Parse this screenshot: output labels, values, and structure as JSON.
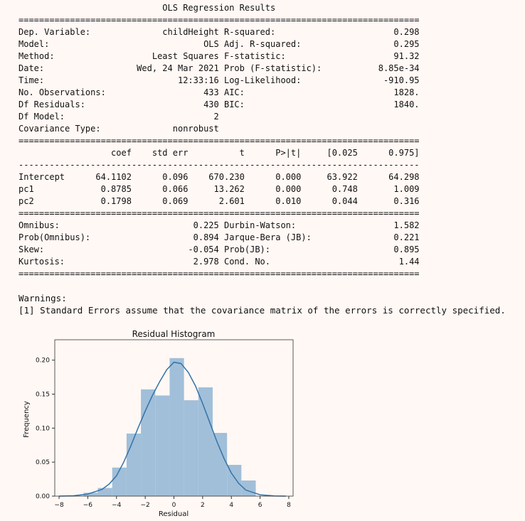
{
  "summary": {
    "title": "OLS Regression Results",
    "rule_double": "==============================================================================",
    "rule_single": "------------------------------------------------------------------------------",
    "model_info_left": [
      {
        "label": "Dep. Variable:",
        "value": "childHeight"
      },
      {
        "label": "Model:",
        "value": "OLS"
      },
      {
        "label": "Method:",
        "value": "Least Squares"
      },
      {
        "label": "Date:",
        "value": "Wed, 24 Mar 2021"
      },
      {
        "label": "Time:",
        "value": "12:33:16"
      },
      {
        "label": "No. Observations:",
        "value": "433"
      },
      {
        "label": "Df Residuals:",
        "value": "430"
      },
      {
        "label": "Df Model:",
        "value": "2"
      },
      {
        "label": "Covariance Type:",
        "value": "nonrobust"
      }
    ],
    "model_info_right": [
      {
        "label": "R-squared:",
        "value": "0.298"
      },
      {
        "label": "Adj. R-squared:",
        "value": "0.295"
      },
      {
        "label": "F-statistic:",
        "value": "91.32"
      },
      {
        "label": "Prob (F-statistic):",
        "value": "8.85e-34"
      },
      {
        "label": "Log-Likelihood:",
        "value": "-910.95"
      },
      {
        "label": "AIC:",
        "value": "1828."
      },
      {
        "label": "BIC:",
        "value": "1840."
      }
    ],
    "coef_headers": [
      "coef",
      "std err",
      "t",
      "P>|t|",
      "[0.025",
      "0.975]"
    ],
    "coef_rows": [
      {
        "name": "Intercept",
        "values": [
          "64.1102",
          "0.096",
          "670.230",
          "0.000",
          "63.922",
          "64.298"
        ]
      },
      {
        "name": "pc1",
        "values": [
          "0.8785",
          "0.066",
          "13.262",
          "0.000",
          "0.748",
          "1.009"
        ]
      },
      {
        "name": "pc2",
        "values": [
          "0.1798",
          "0.069",
          "2.601",
          "0.010",
          "0.044",
          "0.316"
        ]
      }
    ],
    "diag_left": [
      {
        "label": "Omnibus:",
        "value": "0.225"
      },
      {
        "label": "Prob(Omnibus):",
        "value": "0.894"
      },
      {
        "label": "Skew:",
        "value": "-0.054"
      },
      {
        "label": "Kurtosis:",
        "value": "2.978"
      }
    ],
    "diag_right": [
      {
        "label": "Durbin-Watson:",
        "value": "1.582"
      },
      {
        "label": "Jarque-Bera (JB):",
        "value": "0.221"
      },
      {
        "label": "Prob(JB):",
        "value": "0.895"
      },
      {
        "label": "Cond. No.",
        "value": "1.44"
      }
    ]
  },
  "warnings": {
    "heading": "Warnings:",
    "items": [
      "[1] Standard Errors assume that the covariance matrix of the errors is correctly specified."
    ]
  },
  "chart_data": {
    "type": "bar",
    "title": "Residual Histogram",
    "xlabel": "Residual",
    "ylabel": "Frequency",
    "xlim": [
      -8.3,
      8.3
    ],
    "ylim": [
      0,
      0.23
    ],
    "xticks": [
      -8,
      -6,
      -4,
      -2,
      0,
      2,
      4,
      6,
      8
    ],
    "yticks": [
      0.0,
      0.05,
      0.1,
      0.15,
      0.2
    ],
    "ytick_labels": [
      "0.00",
      "0.05",
      "0.10",
      "0.15",
      "0.20"
    ],
    "bin_edges": [
      -6.3,
      -5.3,
      -4.3,
      -3.3,
      -2.3,
      -1.3,
      -0.3,
      0.7,
      1.7,
      2.7,
      3.7,
      4.7,
      5.7
    ],
    "values": [
      0.005,
      0.012,
      0.042,
      0.092,
      0.157,
      0.148,
      0.203,
      0.141,
      0.16,
      0.093,
      0.046,
      0.023,
      0.009
    ],
    "kde_x": [
      -8.0,
      -7.0,
      -6.0,
      -5.0,
      -4.5,
      -4.0,
      -3.5,
      -3.0,
      -2.5,
      -2.0,
      -1.5,
      -1.0,
      -0.5,
      0.0,
      0.5,
      1.0,
      1.5,
      2.0,
      2.5,
      3.0,
      3.5,
      4.0,
      4.5,
      5.0,
      6.0,
      7.0,
      7.8
    ],
    "kde_y": [
      0.0,
      0.0005,
      0.003,
      0.01,
      0.018,
      0.03,
      0.05,
      0.074,
      0.1,
      0.125,
      0.148,
      0.168,
      0.186,
      0.197,
      0.195,
      0.182,
      0.162,
      0.136,
      0.108,
      0.08,
      0.055,
      0.034,
      0.019,
      0.009,
      0.002,
      0.0003,
      0.0
    ],
    "colors": {
      "bar": "#a1bfd9",
      "kde": "#3473a8",
      "axis": "#333333"
    }
  }
}
